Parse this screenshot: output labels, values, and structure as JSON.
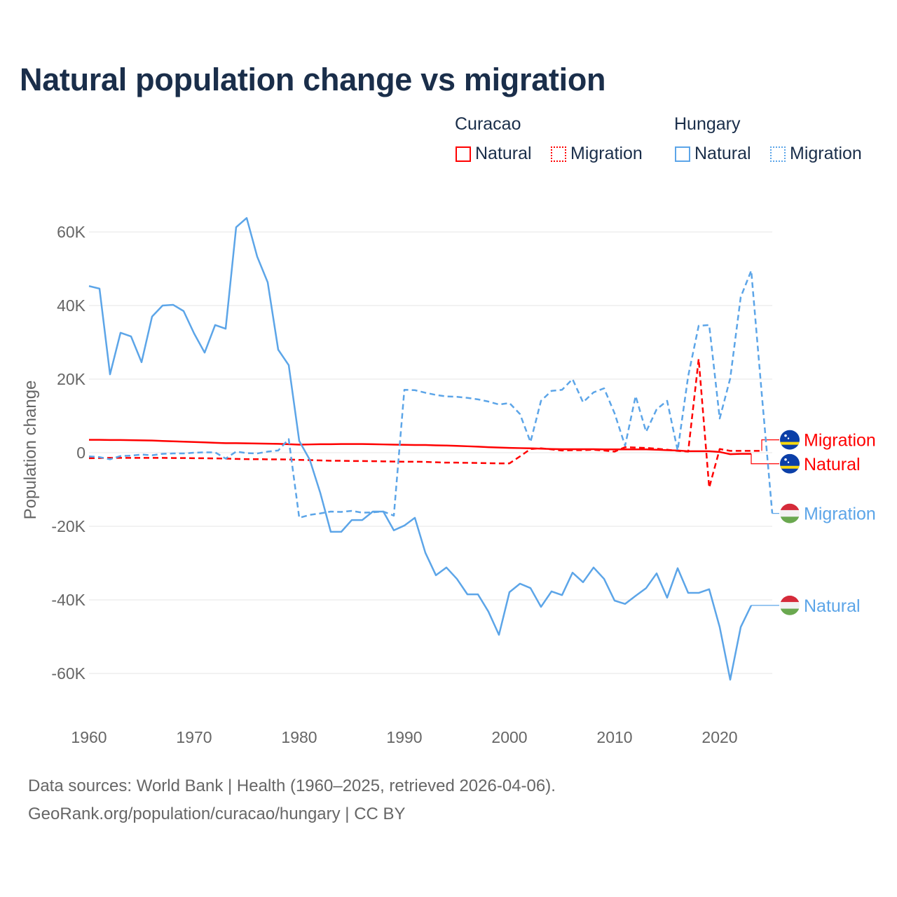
{
  "title": "Natural population change vs migration",
  "legend": {
    "groups": [
      {
        "country": "Curacao",
        "items": [
          {
            "label": "Natural",
            "style": "solid",
            "color": "#ff0000"
          },
          {
            "label": "Migration",
            "style": "dotted",
            "color": "#ff0000"
          }
        ]
      },
      {
        "country": "Hungary",
        "items": [
          {
            "label": "Natural",
            "style": "solid",
            "color": "#5ca5e8"
          },
          {
            "label": "Migration",
            "style": "dotted",
            "color": "#5ca5e8"
          }
        ]
      }
    ]
  },
  "footer": {
    "line1": "Data sources: World Bank | Health (1960–2025, retrieved 2026-04-06).",
    "line2": "GeoRank.org/population/curacao/hungary | CC BY"
  },
  "chart_data": {
    "type": "line",
    "title": "Natural population change vs migration",
    "xlabel": "",
    "ylabel": "Population change",
    "xlim": [
      1960,
      2025
    ],
    "ylim": [
      -70000,
      65000
    ],
    "x_ticks": [
      1960,
      1970,
      1980,
      1990,
      2000,
      2010,
      2020
    ],
    "x_tick_labels": [
      "1960",
      "1970",
      "1980",
      "1990",
      "2000",
      "2010",
      "2020"
    ],
    "y_ticks": [
      60000,
      40000,
      20000,
      0,
      -20000,
      -40000,
      -60000
    ],
    "y_tick_labels": [
      "60K",
      "40K",
      "20K",
      "0",
      "-20K",
      "-40K",
      "-60K"
    ],
    "grid": true,
    "legend_position": "top-right",
    "series": [
      {
        "name": "Curacao Migration",
        "end_label": "Migration",
        "country": "Curacao",
        "color": "#ff0000",
        "dash": true,
        "flag": "curacao",
        "label_value": 3500,
        "start_year": 1960,
        "values": [
          -1500,
          -1450,
          -1400,
          -1400,
          -1400,
          -1400,
          -1400,
          -1400,
          -1450,
          -1450,
          -1500,
          -1500,
          -1550,
          -1600,
          -1700,
          -1750,
          -1750,
          -1800,
          -1800,
          -1850,
          -1950,
          -2000,
          -2100,
          -2200,
          -2200,
          -2250,
          -2250,
          -2300,
          -2350,
          -2400,
          -2450,
          -2450,
          -2500,
          -2600,
          -2700,
          -2700,
          -2750,
          -2800,
          -2850,
          -2900,
          -2900,
          -1000,
          1000,
          1200,
          900,
          600,
          700,
          700,
          800,
          600,
          300,
          1500,
          1400,
          1300,
          1100,
          800,
          500,
          300,
          25500,
          -9500,
          1000,
          500,
          500,
          500,
          500
        ]
      },
      {
        "name": "Curacao Natural",
        "end_label": "Natural",
        "country": "Curacao",
        "color": "#ff0000",
        "dash": false,
        "flag": "curacao",
        "label_value": -3000,
        "start_year": 1960,
        "values": [
          3500,
          3500,
          3450,
          3450,
          3400,
          3350,
          3300,
          3200,
          3100,
          3000,
          2900,
          2800,
          2700,
          2600,
          2600,
          2550,
          2500,
          2450,
          2400,
          2300,
          2200,
          2250,
          2300,
          2300,
          2350,
          2350,
          2350,
          2300,
          2250,
          2200,
          2150,
          2100,
          2100,
          2000,
          1950,
          1850,
          1750,
          1650,
          1500,
          1400,
          1300,
          1250,
          1200,
          1100,
          1000,
          950,
          950,
          950,
          950,
          900,
          900,
          900,
          900,
          900,
          800,
          700,
          600,
          400,
          400,
          400,
          200,
          -400,
          -300,
          -300
        ]
      },
      {
        "name": "Hungary Migration",
        "end_label": "Migration",
        "country": "Hungary",
        "color": "#5ca5e8",
        "dash": true,
        "flag": "hungary",
        "label_value": -16500,
        "start_year": 1960,
        "values": [
          -1000,
          -1200,
          -1800,
          -900,
          -800,
          -500,
          -700,
          -300,
          -200,
          -200,
          0,
          100,
          100,
          -1600,
          300,
          -100,
          -200,
          300,
          600,
          3700,
          -17700,
          -16900,
          -16500,
          -16000,
          -16100,
          -15800,
          -16300,
          -16200,
          -16000,
          -17100,
          17100,
          17000,
          16300,
          15700,
          15300,
          15200,
          14900,
          14500,
          13900,
          13100,
          13500,
          10500,
          2900,
          14100,
          16800,
          17100,
          20000,
          13700,
          16400,
          17500,
          10700,
          1900,
          15400,
          5700,
          11800,
          14100,
          600,
          20800,
          34500,
          34700,
          9300,
          20200,
          42300,
          49500,
          16000,
          -16500
        ]
      },
      {
        "name": "Hungary Natural",
        "end_label": "Natural",
        "country": "Hungary",
        "color": "#5ca5e8",
        "dash": false,
        "flag": "hungary",
        "label_value": -41500,
        "start_year": 1960,
        "values": [
          45300,
          44600,
          21300,
          32600,
          31600,
          24600,
          37000,
          40000,
          40200,
          38500,
          32400,
          27200,
          34700,
          33700,
          61300,
          63800,
          53300,
          46300,
          28000,
          23800,
          3200,
          -1900,
          -10900,
          -21500,
          -21500,
          -18300,
          -18300,
          -16000,
          -16000,
          -21100,
          -19800,
          -17700,
          -27200,
          -33300,
          -31200,
          -34300,
          -38500,
          -38500,
          -43200,
          -49500,
          -37900,
          -35600,
          -36800,
          -41900,
          -37700,
          -38700,
          -32600,
          -35200,
          -31200,
          -34300,
          -40200,
          -41100,
          -38900,
          -36800,
          -32800,
          -39400,
          -31400,
          -38100,
          -38100,
          -37100,
          -47400,
          -61700,
          -47400,
          -41500
        ]
      }
    ]
  }
}
